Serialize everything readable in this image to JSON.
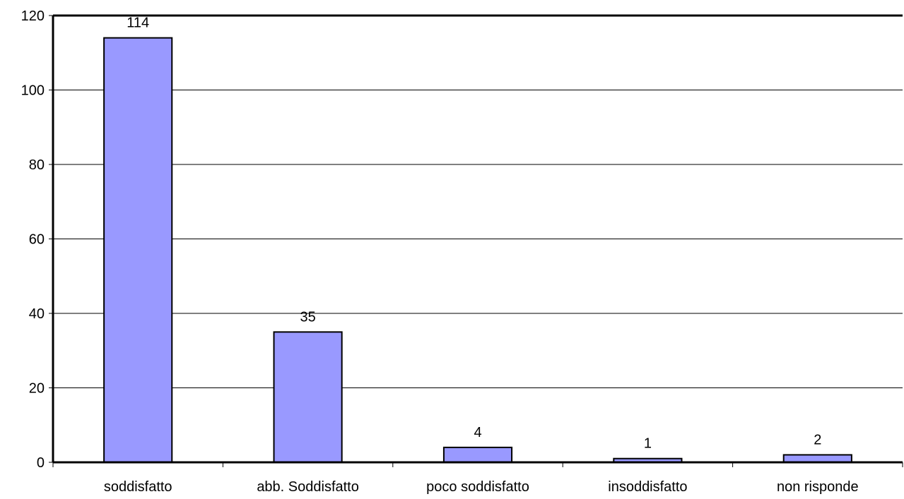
{
  "chart_data": {
    "type": "bar",
    "categories": [
      "soddisfatto",
      "abb. Soddisfatto",
      "poco soddisfatto",
      "insoddisfatto",
      "non risponde"
    ],
    "values": [
      114,
      35,
      4,
      1,
      2
    ],
    "data_labels": [
      "114",
      "35",
      "4",
      "1",
      "2"
    ],
    "ylim": [
      0,
      120
    ],
    "yticks": [
      0,
      20,
      40,
      60,
      80,
      100,
      120
    ],
    "ytick_labels": [
      "0",
      "20",
      "40",
      "60",
      "80",
      "100",
      "120"
    ],
    "grid": true,
    "legend": false,
    "colors": {
      "bar_fill": "#9999ff",
      "bar_stroke": "#000000",
      "gridline": "#000000",
      "axis": "#000000"
    }
  }
}
